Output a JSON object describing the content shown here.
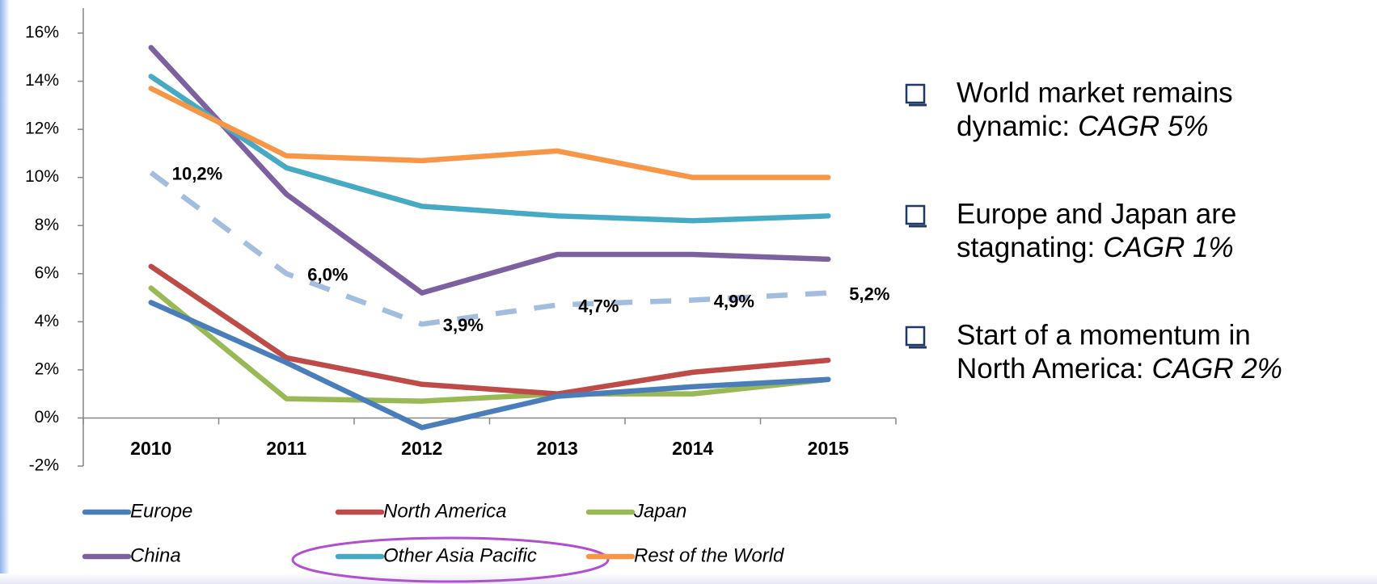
{
  "chart_data": {
    "type": "line",
    "categories": [
      "2010",
      "2011",
      "2012",
      "2013",
      "2014",
      "2015"
    ],
    "ylim": [
      -2,
      16
    ],
    "yticks": [
      {
        "value": -2,
        "label": "-2%"
      },
      {
        "value": 0,
        "label": "0%"
      },
      {
        "value": 2,
        "label": "2%"
      },
      {
        "value": 4,
        "label": "4%"
      },
      {
        "value": 6,
        "label": "6%"
      },
      {
        "value": 8,
        "label": "8%"
      },
      {
        "value": 10,
        "label": "10%"
      },
      {
        "value": 12,
        "label": "12%"
      },
      {
        "value": 14,
        "label": "14%"
      },
      {
        "value": 16,
        "label": "16%"
      }
    ],
    "grid": false,
    "legend": "bottom",
    "series": [
      {
        "name": "Europe",
        "color": "#4a7ebb",
        "values": [
          4.8,
          2.3,
          -0.4,
          0.9,
          1.3,
          1.6
        ]
      },
      {
        "name": "North America",
        "color": "#be4b48",
        "values": [
          6.3,
          2.5,
          1.4,
          1.0,
          1.9,
          2.4
        ]
      },
      {
        "name": "Japan",
        "color": "#98b954",
        "values": [
          5.4,
          0.8,
          0.7,
          1.0,
          1.0,
          1.6
        ]
      },
      {
        "name": "China",
        "color": "#7d60a0",
        "values": [
          15.4,
          9.3,
          5.2,
          6.8,
          6.8,
          6.6
        ]
      },
      {
        "name": "Other Asia Pacific",
        "color": "#46aac5",
        "values": [
          14.2,
          10.4,
          8.8,
          8.4,
          8.2,
          8.4
        ]
      },
      {
        "name": "Rest of the World",
        "color": "#f79646",
        "values": [
          13.7,
          10.9,
          10.7,
          11.1,
          10.0,
          10.0
        ]
      },
      {
        "color": "#a3bddf",
        "dashed": true,
        "values": [
          10.2,
          6.0,
          3.9,
          4.7,
          4.9,
          5.2
        ],
        "value_labels": [
          "10,2%",
          "6,0%",
          "3,9%",
          "4,7%",
          "4,9%",
          "5,2%"
        ]
      }
    ]
  },
  "notes": [
    {
      "line1": "World market remains",
      "line2": "dynamic:",
      "emphasis": "CAGR 5%"
    },
    {
      "line1": "Europe and Japan are",
      "line2": "stagnating:",
      "emphasis": "CAGR 1%"
    },
    {
      "line1": "Start of a momentum in",
      "line2": "North America:",
      "emphasis": "CAGR 2%"
    }
  ]
}
